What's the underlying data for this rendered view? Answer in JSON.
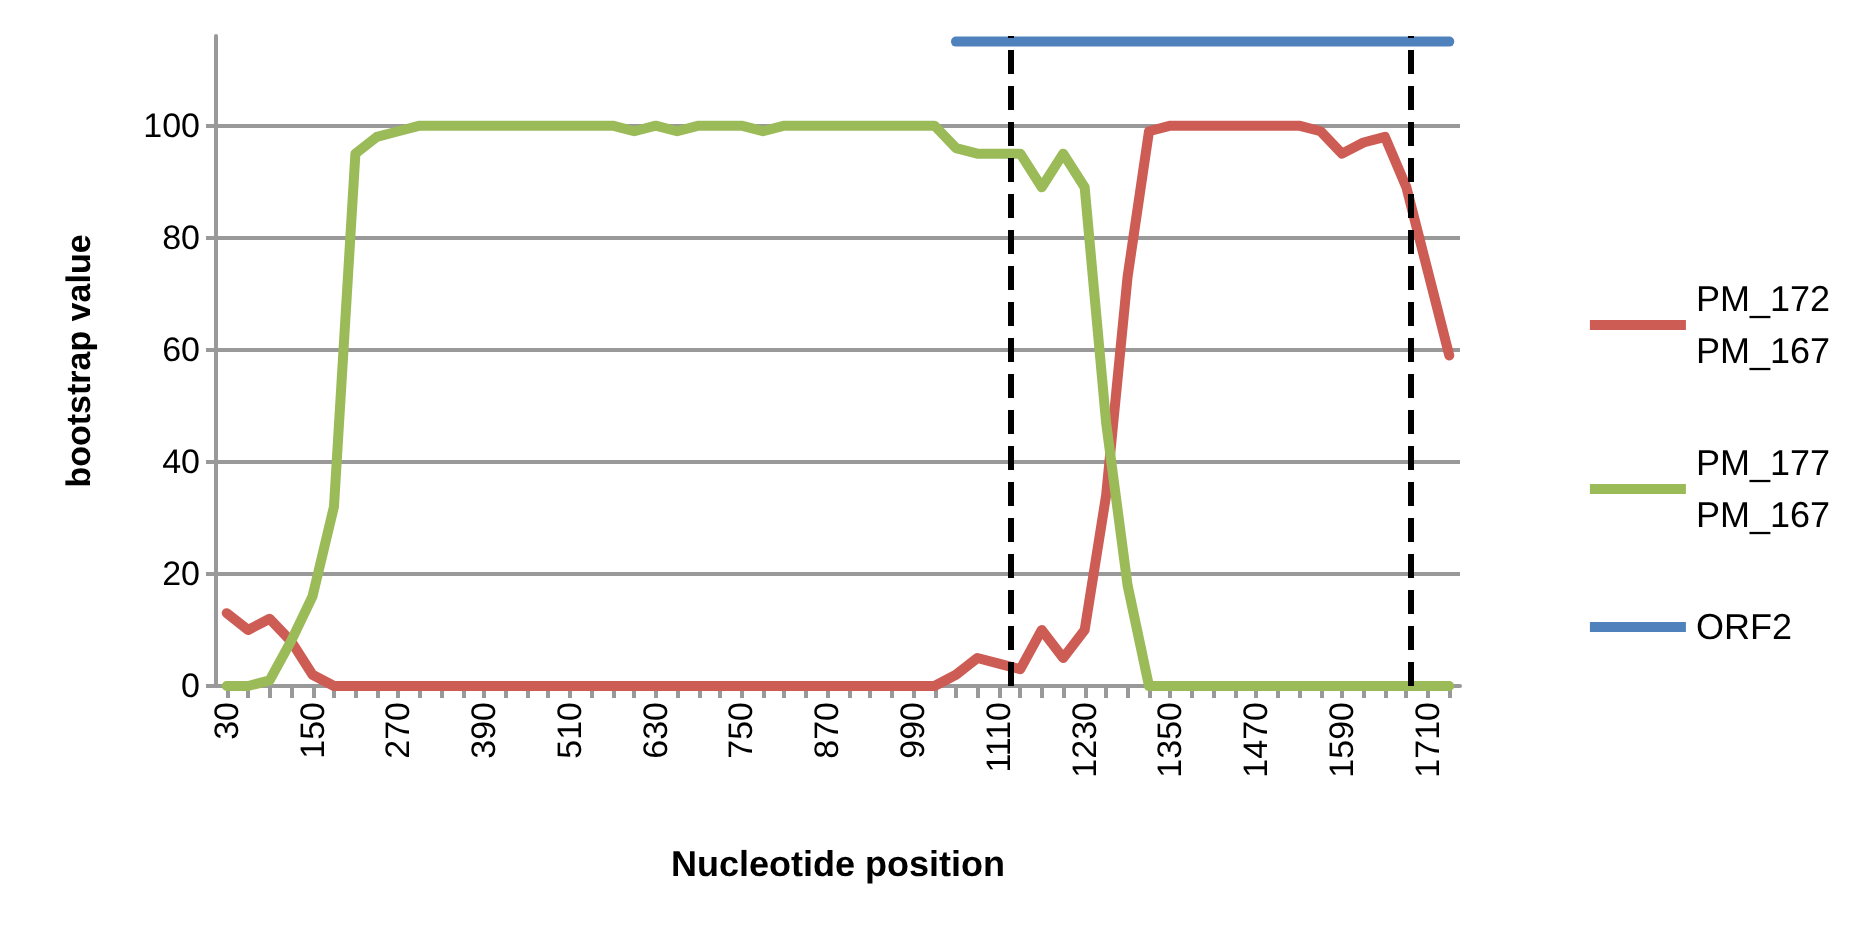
{
  "chart_data": {
    "type": "line",
    "xlabel": "Nucleotide position",
    "ylabel": "bootstrap value",
    "x": [
      30,
      60,
      90,
      120,
      150,
      180,
      210,
      240,
      270,
      300,
      330,
      360,
      390,
      420,
      450,
      480,
      510,
      540,
      570,
      600,
      630,
      660,
      690,
      720,
      750,
      780,
      810,
      840,
      870,
      900,
      930,
      960,
      990,
      1020,
      1050,
      1080,
      1110,
      1140,
      1170,
      1200,
      1230,
      1260,
      1290,
      1320,
      1350,
      1380,
      1410,
      1440,
      1470,
      1500,
      1530,
      1560,
      1590,
      1620,
      1650,
      1680,
      1710,
      1740
    ],
    "series": [
      {
        "name": "PM_172\nPM_167",
        "color": "#cd5c54",
        "values": [
          13,
          10,
          12,
          8,
          2,
          0,
          0,
          0,
          0,
          0,
          0,
          0,
          0,
          0,
          0,
          0,
          0,
          0,
          0,
          0,
          0,
          0,
          0,
          0,
          0,
          0,
          0,
          0,
          0,
          0,
          0,
          0,
          0,
          0,
          2,
          5,
          4,
          3,
          10,
          5,
          10,
          34,
          73,
          99,
          100,
          100,
          100,
          100,
          100,
          100,
          100,
          99,
          95,
          97,
          98,
          89,
          74,
          59
        ]
      },
      {
        "name": "PM_177\nPM_167",
        "color": "#9bbb59",
        "values": [
          0,
          0,
          1,
          8,
          16,
          32,
          95,
          98,
          99,
          100,
          100,
          100,
          100,
          100,
          100,
          100,
          100,
          100,
          100,
          99,
          100,
          99,
          100,
          100,
          100,
          99,
          100,
          100,
          100,
          100,
          100,
          100,
          100,
          100,
          96,
          95,
          95,
          95,
          89,
          95,
          89,
          47,
          18,
          0,
          0,
          0,
          0,
          0,
          0,
          0,
          0,
          0,
          0,
          0,
          0,
          0,
          0,
          0
        ]
      },
      {
        "name": "ORF2",
        "color": "#4f81bd",
        "values": [
          null,
          null,
          null,
          null,
          null,
          null,
          null,
          null,
          null,
          null,
          null,
          null,
          null,
          null,
          null,
          null,
          null,
          null,
          null,
          null,
          null,
          null,
          null,
          null,
          null,
          null,
          null,
          null,
          null,
          null,
          null,
          null,
          null,
          null,
          115,
          115,
          115,
          115,
          115,
          115,
          115,
          115,
          115,
          115,
          115,
          115,
          115,
          115,
          115,
          115,
          115,
          115,
          115,
          115,
          115,
          115,
          115,
          115
        ]
      }
    ],
    "xlim": [
      15,
      1755
    ],
    "xticks": [
      30,
      150,
      270,
      390,
      510,
      630,
      750,
      870,
      990,
      1110,
      1230,
      1350,
      1470,
      1590,
      1710
    ],
    "ylim": [
      0,
      116
    ],
    "yticks": [
      0,
      20,
      40,
      60,
      80,
      100
    ],
    "ref_lines": [
      {
        "axis": "x",
        "value": 1125,
        "label": null,
        "color": "#000000",
        "line_style": "dashed"
      },
      {
        "axis": "x",
        "value": 1685,
        "label": null,
        "color": "#000000",
        "line_style": "dashed"
      }
    ],
    "grid": "y",
    "legend": "right",
    "marker": "none",
    "line_style": "solid"
  }
}
